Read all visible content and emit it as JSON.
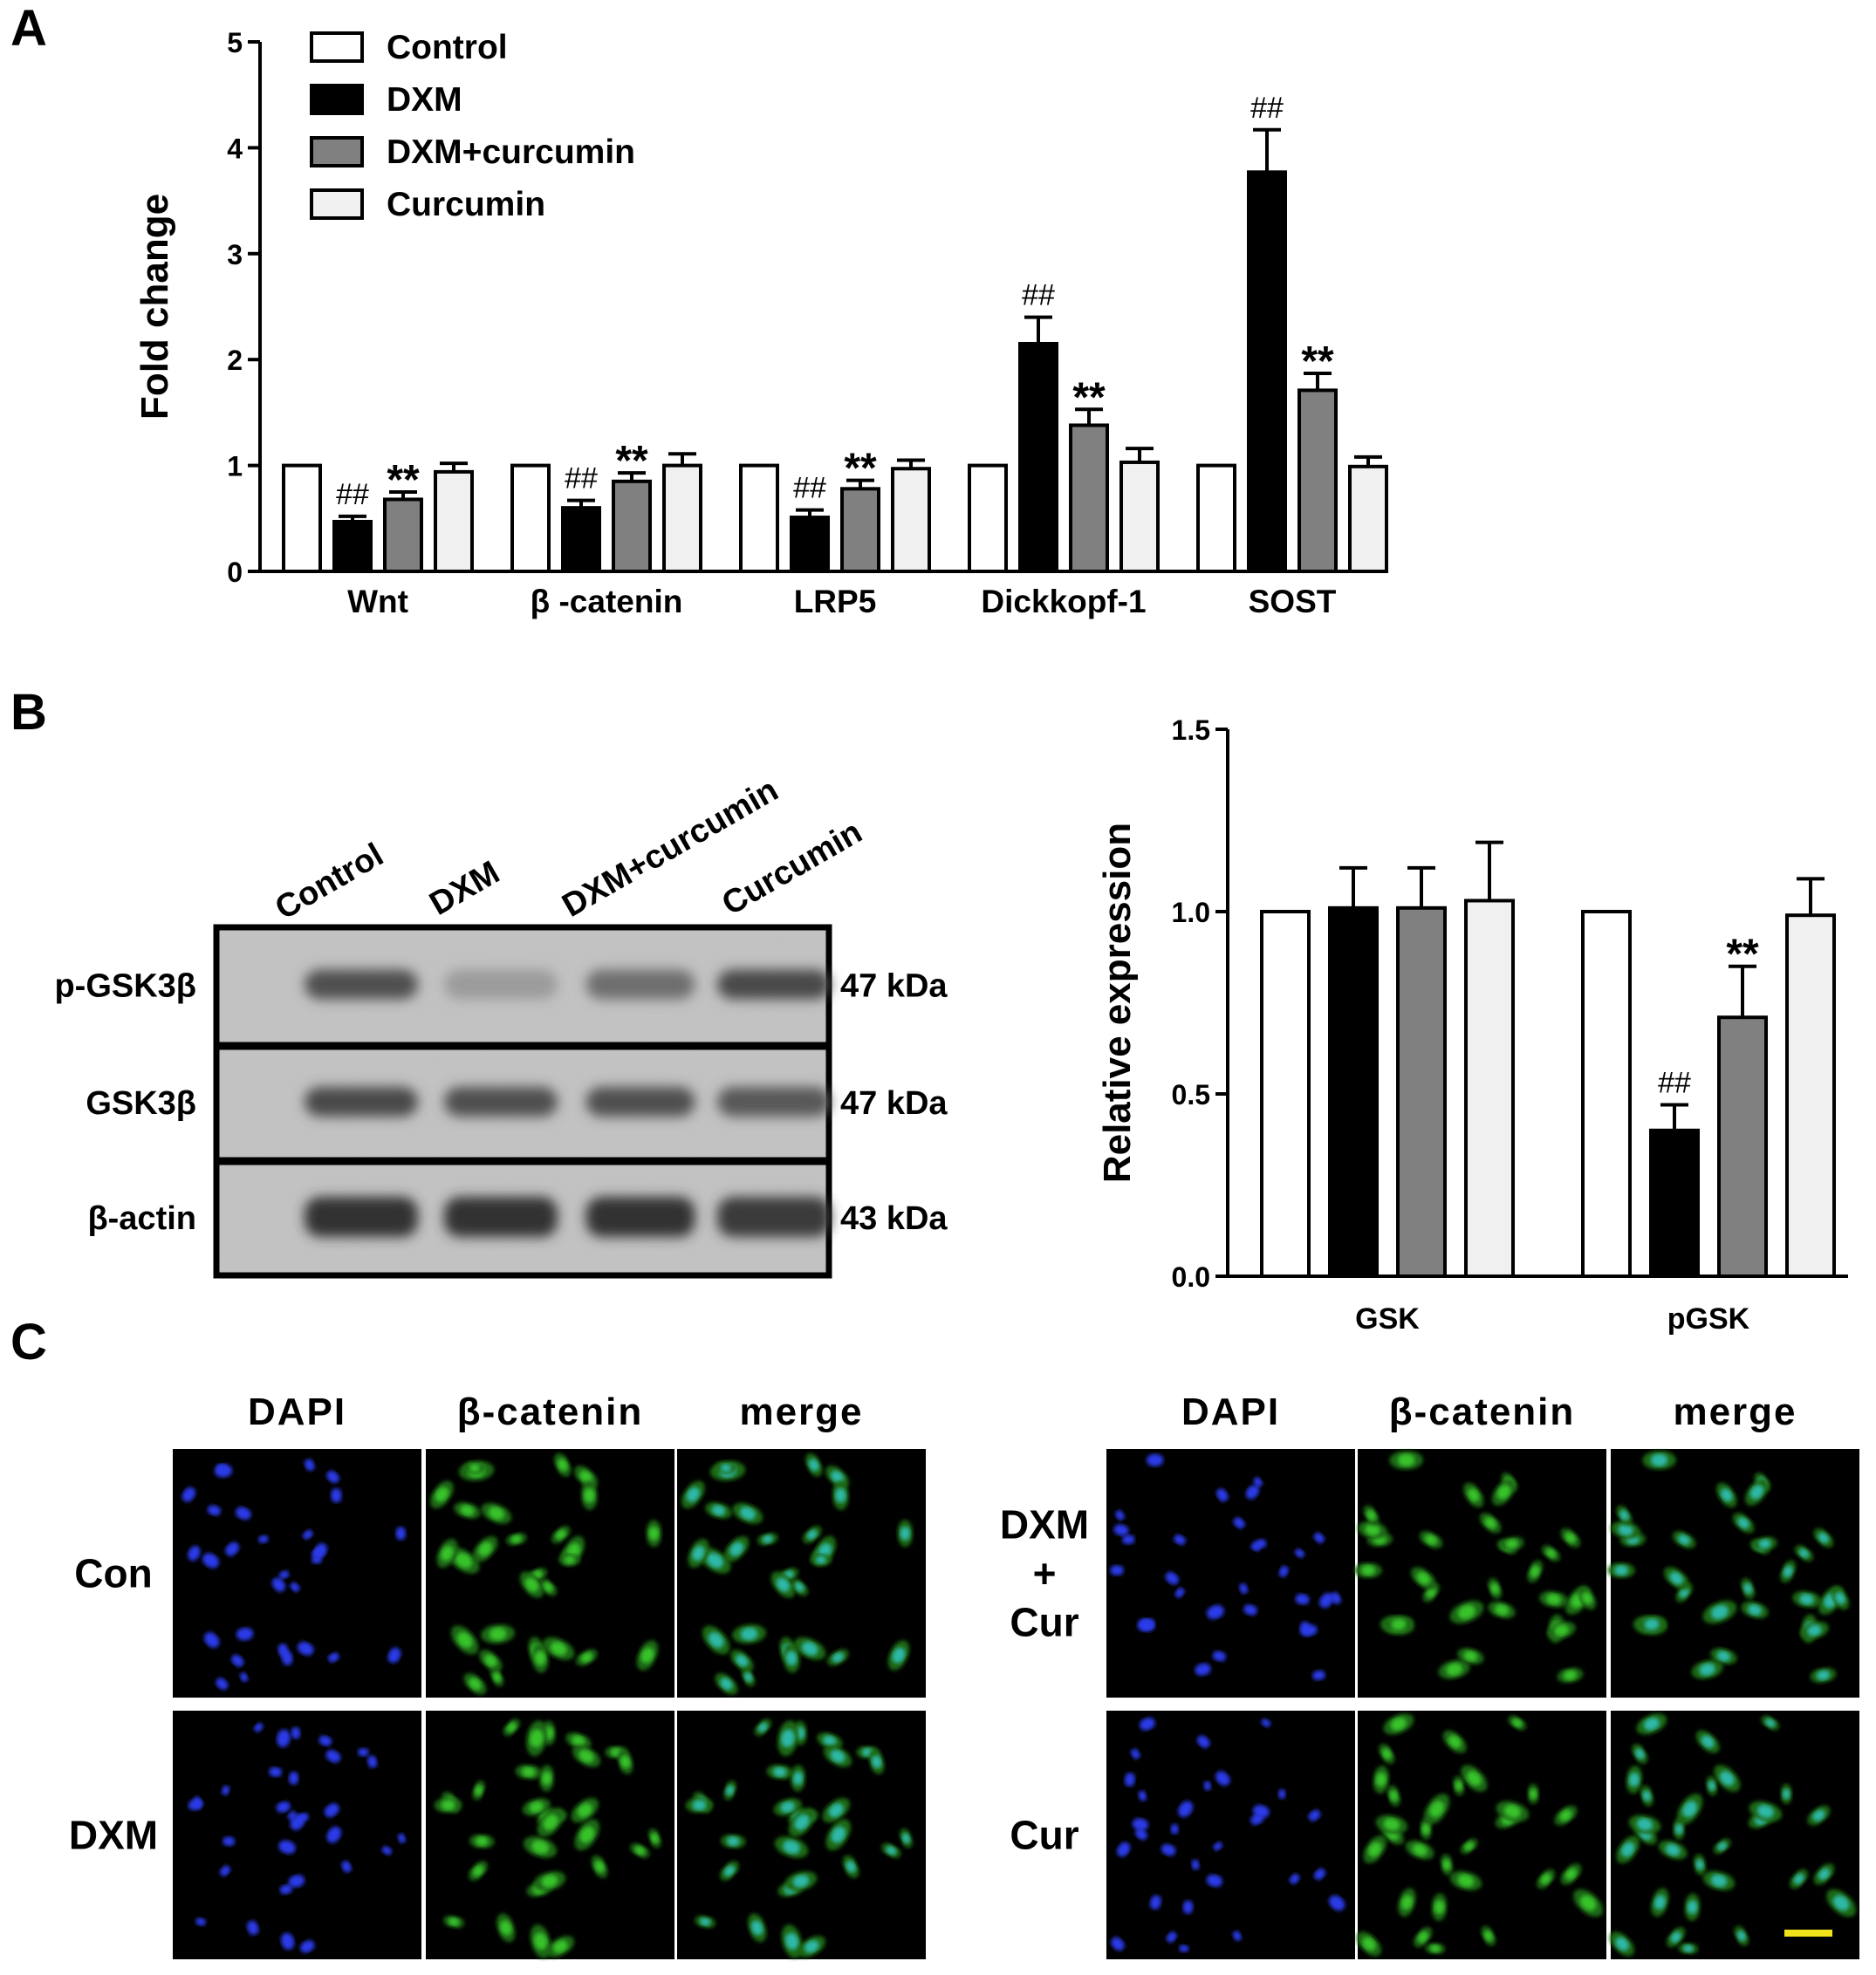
{
  "panel_labels": {
    "a": "A",
    "b": "B",
    "c": "C"
  },
  "chart_data": [
    {
      "type": "bar",
      "panel": "A",
      "ylabel": "Fold change",
      "ylim": [
        0,
        5
      ],
      "yticks": [
        "0",
        "1",
        "2",
        "3",
        "4",
        "5"
      ],
      "categories": [
        "Wnt",
        "β -catenin",
        "LRP5",
        "Dickkopf-1",
        "SOST"
      ],
      "series": [
        {
          "name": "Control",
          "color": "#ffffff",
          "values": [
            1.0,
            1.0,
            1.0,
            1.0,
            1.0
          ],
          "errors": [
            0,
            0,
            0,
            0,
            0
          ]
        },
        {
          "name": "DXM",
          "color": "#000000",
          "values": [
            0.47,
            0.6,
            0.51,
            2.15,
            3.77
          ],
          "errors": [
            0.05,
            0.07,
            0.07,
            0.25,
            0.4
          ]
        },
        {
          "name": "DXM+curcumin",
          "color": "#808080",
          "values": [
            0.68,
            0.85,
            0.78,
            1.38,
            1.71
          ],
          "errors": [
            0.07,
            0.08,
            0.08,
            0.15,
            0.16
          ]
        },
        {
          "name": "Curcumin",
          "color": "#f0f0f0",
          "values": [
            0.94,
            1.0,
            0.97,
            1.03,
            0.99
          ],
          "errors": [
            0.08,
            0.11,
            0.08,
            0.13,
            0.09
          ]
        }
      ],
      "annotations": [
        {
          "text": "##",
          "category": 0,
          "series": 1
        },
        {
          "text": "**",
          "category": 0,
          "series": 2
        },
        {
          "text": "##",
          "category": 1,
          "series": 1
        },
        {
          "text": "**",
          "category": 1,
          "series": 2
        },
        {
          "text": "##",
          "category": 2,
          "series": 1
        },
        {
          "text": "**",
          "category": 2,
          "series": 2
        },
        {
          "text": "##",
          "category": 3,
          "series": 1
        },
        {
          "text": "**",
          "category": 3,
          "series": 2
        },
        {
          "text": "##",
          "category": 4,
          "series": 1
        },
        {
          "text": "**",
          "category": 4,
          "series": 2
        }
      ],
      "legend_placement": "top-left"
    },
    {
      "type": "bar",
      "panel": "B",
      "ylabel": "Relative expression",
      "ylim": [
        0,
        1.5
      ],
      "yticks": [
        "0.0",
        "0.5",
        "1.0",
        "1.5"
      ],
      "categories": [
        "GSK",
        "pGSK"
      ],
      "series": [
        {
          "name": "Control",
          "color": "#ffffff",
          "values": [
            1.0,
            1.0
          ],
          "errors": [
            0,
            0
          ]
        },
        {
          "name": "DXM",
          "color": "#000000",
          "values": [
            1.01,
            0.4
          ],
          "errors": [
            0.11,
            0.07
          ]
        },
        {
          "name": "DXM+curcumin",
          "color": "#808080",
          "values": [
            1.01,
            0.71
          ],
          "errors": [
            0.11,
            0.14
          ]
        },
        {
          "name": "Curcumin",
          "color": "#f0f0f0",
          "values": [
            1.03,
            0.99
          ],
          "errors": [
            0.16,
            0.1
          ]
        }
      ],
      "annotations": [
        {
          "text": "##",
          "category": 1,
          "series": 1
        },
        {
          "text": "**",
          "category": 1,
          "series": 2
        }
      ]
    }
  ],
  "western_blot": {
    "lanes": [
      "Control",
      "DXM",
      "DXM+curcumin",
      "Curcumin"
    ],
    "rows": [
      {
        "protein": "p-GSK3β",
        "size": "47 kDa",
        "intensity": [
          0.8,
          0.3,
          0.6,
          0.85
        ]
      },
      {
        "protein": "GSK3β",
        "size": "47 kDa",
        "intensity": [
          0.85,
          0.8,
          0.8,
          0.75
        ]
      },
      {
        "protein": "β-actin",
        "size": "43 kDa",
        "intensity": [
          1.0,
          1.0,
          1.0,
          0.95
        ]
      }
    ]
  },
  "fluorescence": {
    "columns": [
      "DAPI",
      "β-catenin",
      "merge"
    ],
    "left_rows": [
      "Con",
      "DXM"
    ],
    "right_rows": [
      [
        "DXM",
        "+",
        "Cur"
      ],
      [
        "Cur"
      ]
    ]
  }
}
